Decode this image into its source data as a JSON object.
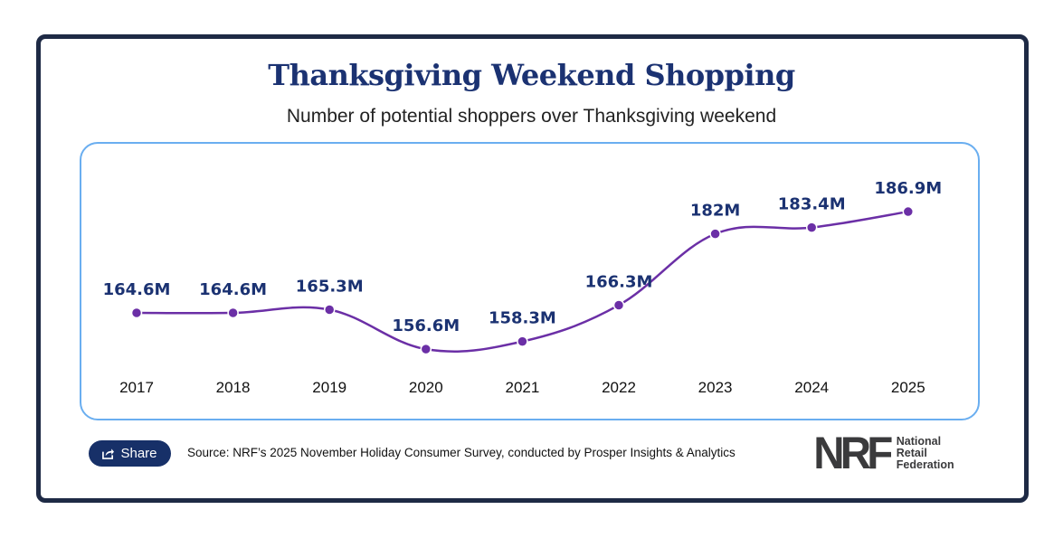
{
  "chart_data": {
    "type": "line",
    "title": "Thanksgiving Weekend Shopping",
    "subtitle": "Number of potential shoppers over Thanksgiving weekend",
    "categories": [
      "2017",
      "2018",
      "2019",
      "2020",
      "2021",
      "2022",
      "2023",
      "2024",
      "2025"
    ],
    "values": [
      164.6,
      164.6,
      165.3,
      156.6,
      158.3,
      166.3,
      182,
      183.4,
      186.9
    ],
    "data_labels": [
      "164.6M",
      "164.6M",
      "165.3M",
      "156.6M",
      "158.3M",
      "166.3M",
      "182M",
      "183.4M",
      "186.9M"
    ],
    "unit": "M",
    "grid": false,
    "y_axis_visible": false,
    "smooth": true,
    "colors": {
      "line": "#6b2fa6",
      "label": "#1b3272",
      "border": "#6aaef0"
    }
  },
  "footer": {
    "share_label": "Share",
    "share_icon": "share-icon",
    "source": "Source: NRF’s 2025 November Holiday Consumer Survey, conducted by Prosper Insights & Analytics",
    "logo_text": "NRF",
    "logo_words": [
      "National",
      "Retail",
      "Federation"
    ]
  }
}
